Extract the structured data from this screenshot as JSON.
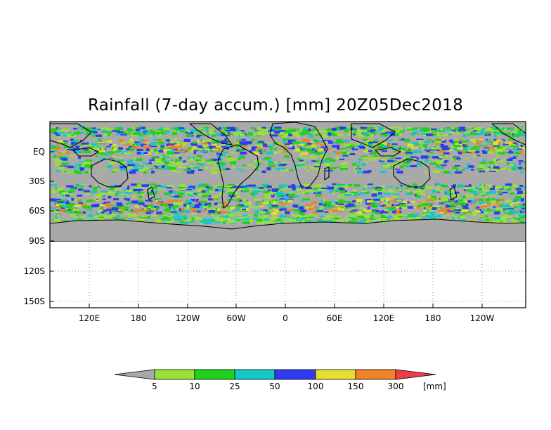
{
  "title": "Rainfall (7-day accum.) [mm] 20Z05Dec2018",
  "y_ticks": [
    "EQ",
    "30S",
    "60S",
    "90S",
    "120S",
    "150S"
  ],
  "x_ticks": [
    "120E",
    "180",
    "120W",
    "60W",
    "0",
    "60E",
    "120E",
    "180",
    "120W"
  ],
  "colorbar": {
    "labels": [
      "5",
      "10",
      "25",
      "50",
      "100",
      "150",
      "300"
    ],
    "unit": "[mm]",
    "under_color": "#a9a9a9",
    "colors": [
      "#9be03a",
      "#1ed21e",
      "#14c8c8",
      "#2d3cf0",
      "#e6dc32",
      "#f08228",
      "#f03c46"
    ]
  },
  "colors": {
    "ocean_no_rain": "#a9a9a9",
    "blank_area": "#ffffff"
  }
}
